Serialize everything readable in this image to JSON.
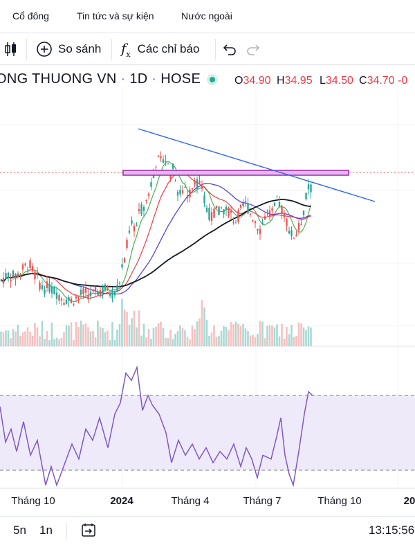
{
  "top_tabs": [
    "Cổ đông",
    "Tin tức và sự kiện",
    "Nước ngoài"
  ],
  "toolbar": {
    "compare_label": "So sánh",
    "indicators_label": "Các chỉ báo"
  },
  "legend": {
    "symbol_name": "ONG THUONG VN",
    "interval": "1D",
    "exchange": "HOSE",
    "open_key": "O",
    "open": "34.90",
    "high_key": "H",
    "high": "34.95",
    "low_key": "L",
    "low": "34.50",
    "close_key": "C",
    "close": "34.70",
    "change": "-0"
  },
  "colors": {
    "up": "#26a69a",
    "down": "#ef5350",
    "ma_fast": "#4caf50",
    "ma_mid": "#f23645",
    "ma_slow": "#5b3fd6",
    "ma_long": "#131722",
    "trendline": "#2962ff",
    "resistance_zone": "#9c27b0",
    "rsi_line": "#7e57c2",
    "rsi_band": "#efeaf9"
  },
  "bottom_bar": {
    "ranges": [
      "5n",
      "1n"
    ],
    "clock": "13:15:56"
  },
  "chart_data": {
    "type": "candlestick",
    "interval": "1D",
    "x_axis_ticks": [
      "Tháng 10",
      "2024",
      "Tháng 4",
      "Tháng 7",
      "Tháng 10",
      "20"
    ],
    "price_last": 34.7,
    "rsi_levels": [
      70,
      30
    ],
    "series": [
      {
        "kind": "price",
        "points": [
          [
            0,
            26.5
          ],
          [
            10,
            27.0
          ],
          [
            20,
            26.8
          ],
          [
            30,
            27.4
          ],
          [
            40,
            28.0
          ],
          [
            50,
            26.9
          ],
          [
            60,
            25.8
          ],
          [
            70,
            25.9
          ],
          [
            80,
            25.4
          ],
          [
            90,
            24.9
          ],
          [
            100,
            24.7
          ],
          [
            110,
            25.0
          ],
          [
            120,
            25.4
          ],
          [
            130,
            25.2
          ],
          [
            140,
            25.5
          ],
          [
            150,
            25.8
          ],
          [
            160,
            25.3
          ],
          [
            170,
            26.0
          ],
          [
            175,
            27.5
          ],
          [
            180,
            29.0
          ],
          [
            185,
            30.5
          ],
          [
            190,
            31.5
          ],
          [
            195,
            31.0
          ],
          [
            200,
            32.5
          ],
          [
            205,
            33.0
          ],
          [
            210,
            33.5
          ],
          [
            215,
            34.5
          ],
          [
            220,
            36.0
          ],
          [
            225,
            37.2
          ],
          [
            230,
            36.8
          ],
          [
            235,
            37.5
          ],
          [
            240,
            37.0
          ],
          [
            245,
            36.0
          ],
          [
            250,
            36.5
          ],
          [
            255,
            34.5
          ],
          [
            260,
            34.0
          ],
          [
            265,
            35.0
          ],
          [
            270,
            34.0
          ],
          [
            275,
            34.5
          ],
          [
            280,
            35.5
          ],
          [
            285,
            35.0
          ],
          [
            290,
            34.5
          ],
          [
            295,
            33.5
          ],
          [
            300,
            32.5
          ],
          [
            305,
            32.0
          ],
          [
            310,
            32.8
          ],
          [
            315,
            32.5
          ],
          [
            320,
            33.0
          ],
          [
            325,
            32.5
          ],
          [
            330,
            32.8
          ],
          [
            335,
            32.0
          ],
          [
            340,
            31.8
          ],
          [
            345,
            32.5
          ],
          [
            350,
            33.0
          ],
          [
            355,
            33.2
          ],
          [
            360,
            32.5
          ],
          [
            365,
            32.0
          ],
          [
            370,
            31.5
          ],
          [
            375,
            31.0
          ],
          [
            380,
            32.0
          ],
          [
            385,
            32.5
          ],
          [
            390,
            32.2
          ],
          [
            395,
            32.8
          ],
          [
            400,
            33.5
          ],
          [
            405,
            33.0
          ],
          [
            410,
            32.0
          ],
          [
            415,
            31.5
          ],
          [
            420,
            30.5
          ],
          [
            425,
            30.4
          ],
          [
            430,
            31.0
          ],
          [
            435,
            32.0
          ],
          [
            440,
            33.5
          ],
          [
            445,
            34.8
          ],
          [
            450,
            34.7
          ]
        ]
      },
      {
        "kind": "rsi",
        "points": [
          [
            0,
            64
          ],
          [
            8,
            45
          ],
          [
            16,
            52
          ],
          [
            24,
            40
          ],
          [
            34,
            56
          ],
          [
            44,
            38
          ],
          [
            54,
            46
          ],
          [
            66,
            22
          ],
          [
            74,
            32
          ],
          [
            82,
            22
          ],
          [
            94,
            34
          ],
          [
            104,
            44
          ],
          [
            114,
            36
          ],
          [
            124,
            52
          ],
          [
            134,
            46
          ],
          [
            144,
            58
          ],
          [
            156,
            42
          ],
          [
            166,
            60
          ],
          [
            174,
            66
          ],
          [
            182,
            82
          ],
          [
            190,
            78
          ],
          [
            198,
            85
          ],
          [
            206,
            62
          ],
          [
            214,
            70
          ],
          [
            220,
            65
          ],
          [
            230,
            60
          ],
          [
            240,
            50
          ],
          [
            248,
            34
          ],
          [
            258,
            46
          ],
          [
            268,
            38
          ],
          [
            278,
            44
          ],
          [
            288,
            36
          ],
          [
            298,
            42
          ],
          [
            308,
            34
          ],
          [
            318,
            40
          ],
          [
            328,
            36
          ],
          [
            338,
            44
          ],
          [
            348,
            32
          ],
          [
            356,
            42
          ],
          [
            364,
            36
          ],
          [
            372,
            26
          ],
          [
            380,
            38
          ],
          [
            392,
            36
          ],
          [
            400,
            48
          ],
          [
            406,
            58
          ],
          [
            412,
            38
          ],
          [
            418,
            28
          ],
          [
            424,
            22
          ],
          [
            432,
            40
          ],
          [
            440,
            60
          ],
          [
            446,
            72
          ],
          [
            452,
            70
          ]
        ]
      }
    ]
  }
}
